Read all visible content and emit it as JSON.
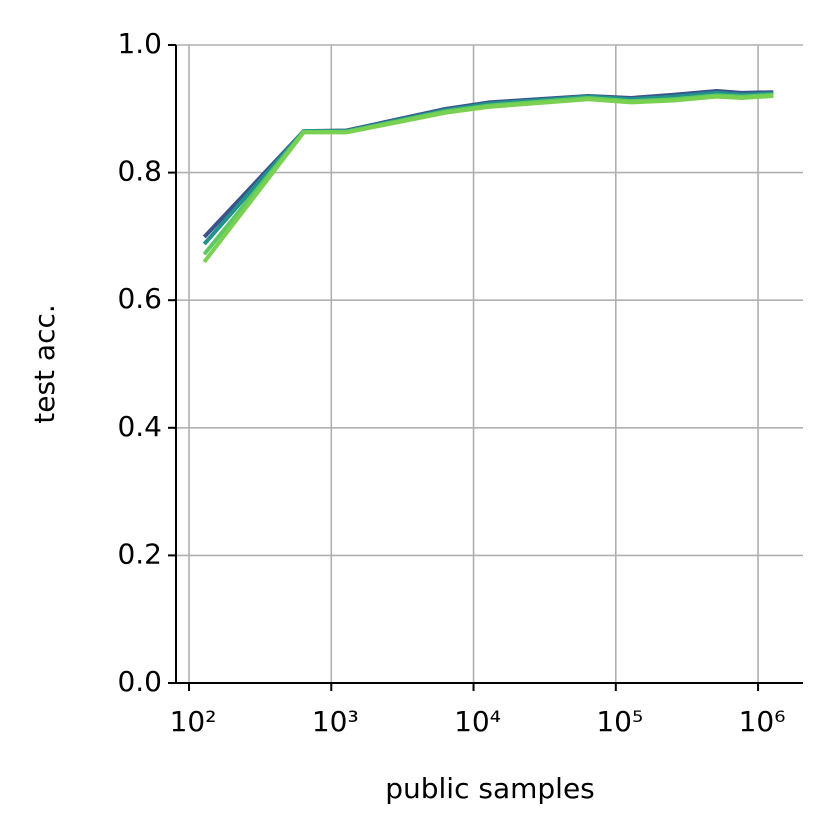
{
  "chart_data": {
    "type": "line",
    "x_label": "public samples",
    "y_label": "test acc.",
    "x": [
      128,
      640,
      1280,
      6400,
      12800,
      64000,
      128000,
      256000,
      512000,
      768000,
      1280000
    ],
    "series": [
      {
        "color": "#3b528b",
        "values": [
          0.699,
          0.865,
          0.866,
          0.9,
          0.91,
          0.92,
          0.917,
          0.922,
          0.928,
          0.925,
          0.926
        ]
      },
      {
        "color": "#21918c",
        "values": [
          0.688,
          0.865,
          0.865,
          0.898,
          0.908,
          0.919,
          0.915,
          0.919,
          0.925,
          0.922,
          0.924
        ]
      },
      {
        "color": "#5ec962",
        "values": [
          0.672,
          0.864,
          0.864,
          0.896,
          0.905,
          0.917,
          0.912,
          0.915,
          0.921,
          0.919,
          0.922
        ]
      },
      {
        "color": "#7ad151",
        "values": [
          0.66,
          0.863,
          0.863,
          0.894,
          0.903,
          0.915,
          0.91,
          0.913,
          0.919,
          0.917,
          0.92
        ]
      }
    ],
    "xscale": "log",
    "grid": true,
    "xlim": [
      81,
      2070000
    ],
    "xticks": [
      {
        "value": 100,
        "label": "10²"
      },
      {
        "value": 1000,
        "label": "10³"
      },
      {
        "value": 10000,
        "label": "10⁴"
      },
      {
        "value": 100000,
        "label": "10⁵"
      },
      {
        "value": 1000000,
        "label": "10⁶"
      }
    ],
    "ylim": [
      0,
      1
    ],
    "yticks": [
      {
        "value": 0,
        "label": "0.0"
      },
      0.2,
      0.4,
      0.6,
      0.8,
      {
        "value": 1,
        "label": "1.0"
      }
    ]
  }
}
